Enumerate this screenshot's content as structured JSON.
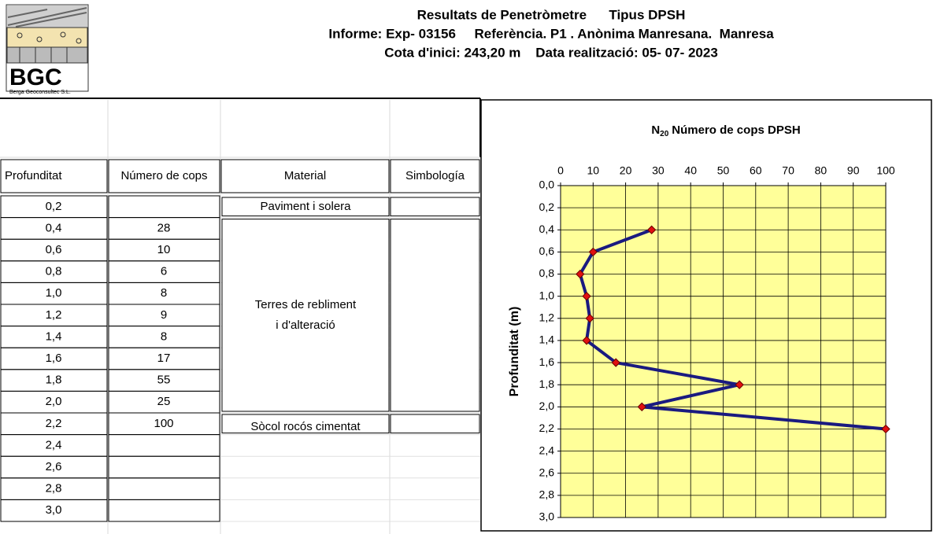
{
  "header": {
    "logo": "BGC",
    "company": "Berga Geoconsultec S.L.",
    "lines": [
      "Resultats de Penetròmetre      Tipus DPSH",
      "Informe: Exp- 03156     Referència. P1 . Anònima Manresana.  Manresa",
      "Cota d'inici: 243,20 m    Data realització: 05- 07- 2023"
    ]
  },
  "table": {
    "columns": [
      "Profunditat",
      "Número de cops",
      "Material",
      "Simbología"
    ],
    "rows": [
      {
        "depth": "0,2"
      },
      {
        "depth": "0,4",
        "cops": "28"
      },
      {
        "depth": "0,6",
        "cops": "10"
      },
      {
        "depth": "0,8",
        "cops": "6"
      },
      {
        "depth": "1,0",
        "cops": "8"
      },
      {
        "depth": "1,2",
        "cops": "9"
      },
      {
        "depth": "1,4",
        "cops": "8"
      },
      {
        "depth": "1,6",
        "cops": "17"
      },
      {
        "depth": "1,8",
        "cops": "55"
      },
      {
        "depth": "2,0",
        "cops": "25"
      },
      {
        "depth": "2,2",
        "cops": "100"
      },
      {
        "depth": "2,4"
      },
      {
        "depth": "2,6"
      },
      {
        "depth": "2,8"
      },
      {
        "depth": "3,0"
      }
    ],
    "materials": [
      {
        "lines": [
          "Paviment i solera"
        ]
      },
      {
        "lines": [
          "Terres de rebliment",
          "i d'alteració"
        ]
      },
      {
        "lines": [
          "Sòcol rocós cimentat"
        ]
      }
    ]
  },
  "chart_data": {
    "type": "line",
    "title_symbol": "N",
    "title_subscript": "20",
    "title": "Número de cops DPSH",
    "y_label": "Profunditat (m)",
    "x": [
      28,
      10,
      6,
      8,
      9,
      8,
      17,
      55,
      25,
      100
    ],
    "values": [
      0.4,
      0.6,
      0.8,
      1.0,
      1.2,
      1.4,
      1.6,
      1.8,
      2.0,
      2.2
    ],
    "line_color": "#1a1a80",
    "marker_color": "#e01010",
    "plot_color": "#ffff99",
    "xlim": [
      0,
      100
    ],
    "xticks": [
      0,
      10,
      20,
      30,
      40,
      50,
      60,
      70,
      80,
      90,
      100
    ],
    "ylim": [
      0,
      3
    ],
    "y_inverted": true,
    "grid": true,
    "yticks": [
      {
        "value": 0,
        "label": "0,0"
      },
      {
        "value": 0.2,
        "label": "0,2"
      },
      {
        "value": 0.4,
        "label": "0,4"
      },
      {
        "value": 0.6,
        "label": "0,6"
      },
      {
        "value": 0.8,
        "label": "0,8"
      },
      {
        "value": 1.0,
        "label": "1,0"
      },
      {
        "value": 1.2,
        "label": "1,2"
      },
      {
        "value": 1.4,
        "label": "1,4"
      },
      {
        "value": 1.6,
        "label": "1,6"
      },
      {
        "value": 1.8,
        "label": "1,8"
      },
      {
        "value": 2.0,
        "label": "2,0"
      },
      {
        "value": 2.2,
        "label": "2,2"
      },
      {
        "value": 2.4,
        "label": "2,4"
      },
      {
        "value": 2.6,
        "label": "2,6"
      },
      {
        "value": 2.8,
        "label": "2,8"
      },
      {
        "value": 3.0,
        "label": "3,0"
      }
    ]
  }
}
